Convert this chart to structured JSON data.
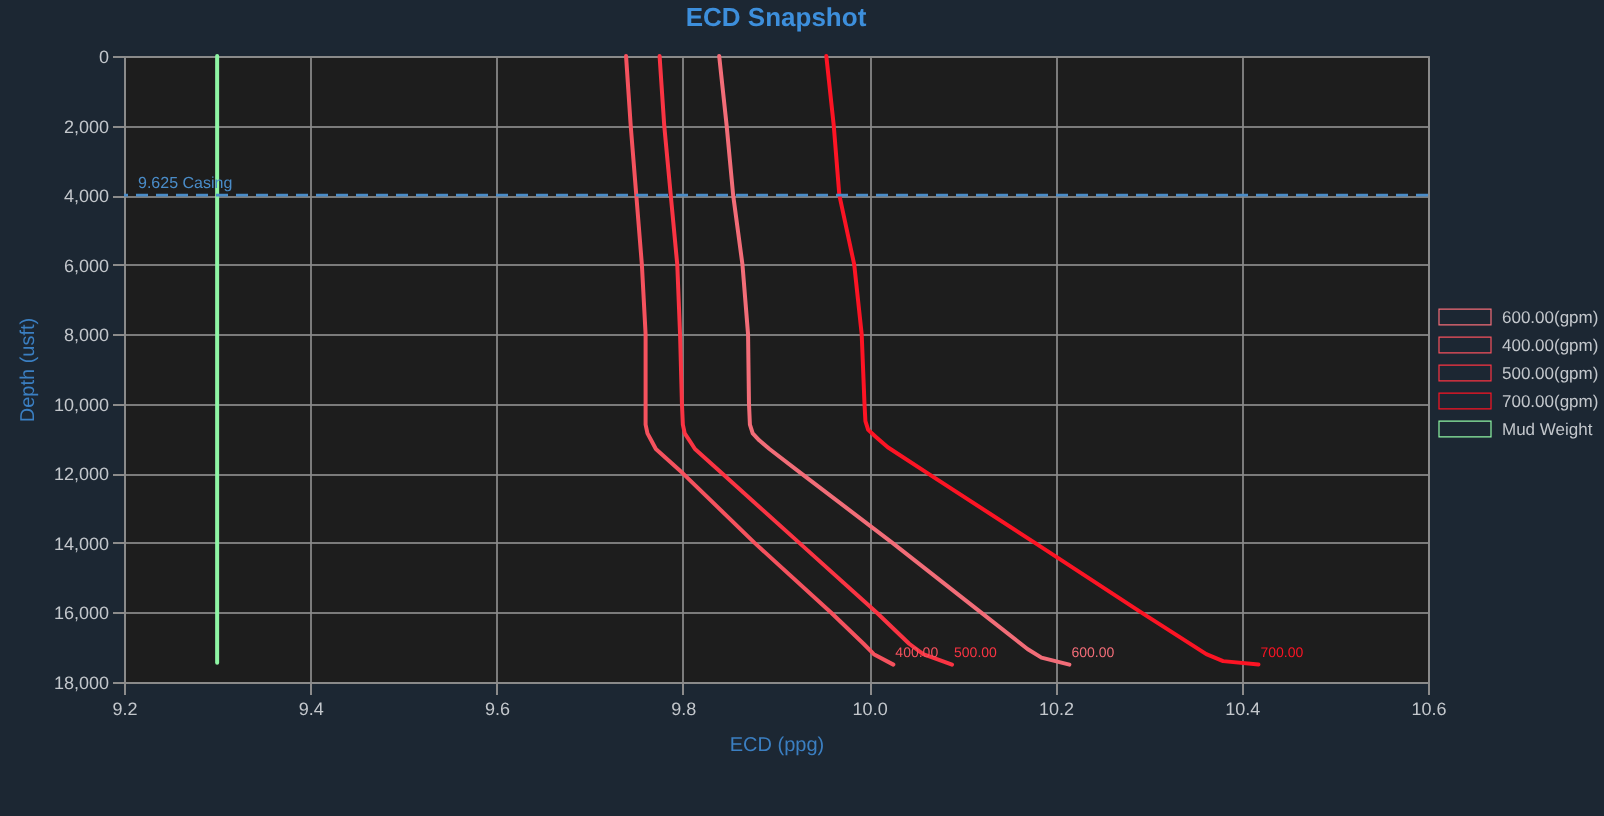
{
  "chart_data": {
    "type": "line",
    "title": "ECD Snapshot",
    "xlabel": "ECD (ppg)",
    "ylabel": "Depth (usft)",
    "xlim": [
      9.2,
      10.6
    ],
    "xticks": [
      9.2,
      9.4,
      9.6,
      9.8,
      {
        "value": 10,
        "label": "10.0"
      },
      10.2,
      10.4,
      10.6
    ],
    "ylim": [
      18000,
      0
    ],
    "yticks": [
      0,
      {
        "value": 2000,
        "label": "2,000"
      },
      {
        "value": 4000,
        "label": "4,000"
      },
      {
        "value": 6000,
        "label": "6,000"
      },
      {
        "value": 8000,
        "label": "8,000"
      },
      {
        "value": 10000,
        "label": "10,000"
      },
      {
        "value": 12000,
        "label": "12,000"
      },
      {
        "value": 14000,
        "label": "14,000"
      },
      {
        "value": 16000,
        "label": "16,000"
      },
      {
        "value": 18000,
        "label": "18,000"
      }
    ],
    "grid": true,
    "legend": "right",
    "series": [
      {
        "name": "600.00(gpm)",
        "color": "#f26d78",
        "x": [
          9.839,
          9.847,
          9.854,
          9.864,
          9.87,
          9.871,
          9.872,
          9.875,
          9.882,
          9.893,
          9.927,
          10.025,
          10.12,
          10.17,
          10.185,
          10.215
        ],
        "values": [
          0,
          2000,
          4000,
          6000,
          8000,
          10000,
          10600,
          10850,
          11050,
          11300,
          12000,
          14000,
          16000,
          17050,
          17300,
          17500
        ]
      },
      {
        "name": "400.00(gpm)",
        "color": "#f5525e",
        "x": [
          9.739,
          9.744,
          9.75,
          9.756,
          9.76,
          9.76,
          9.76,
          9.762,
          9.766,
          9.771,
          9.8,
          9.877,
          9.959,
          9.994,
          10.005,
          10.026
        ],
        "values": [
          0,
          2000,
          4000,
          6000,
          8000,
          10000,
          10600,
          10850,
          11050,
          11300,
          12000,
          14000,
          16000,
          16900,
          17200,
          17500
        ]
      },
      {
        "name": "500.00(gpm)",
        "color": "#fa3443",
        "x": [
          9.775,
          9.78,
          9.787,
          9.794,
          9.797,
          9.799,
          9.8,
          9.802,
          9.807,
          9.813,
          9.842,
          9.925,
          10.008,
          10.043,
          10.058,
          10.089
        ],
        "values": [
          0,
          2000,
          4000,
          6000,
          8000,
          10000,
          10600,
          10850,
          11050,
          11300,
          12000,
          14000,
          16000,
          16900,
          17200,
          17500
        ]
      },
      {
        "name": "700.00(gpm)",
        "color": "#fc1424",
        "x": [
          9.954,
          9.962,
          9.968,
          9.984,
          9.992,
          9.995,
          9.996,
          9.999,
          10.007,
          10.02,
          10.063,
          10.178,
          10.292,
          10.362,
          10.38,
          10.418
        ],
        "values": [
          0,
          2000,
          4000,
          6000,
          8000,
          10000,
          10500,
          10750,
          10950,
          11250,
          12000,
          14000,
          16000,
          17200,
          17400,
          17500
        ]
      },
      {
        "name": "Mud Weight",
        "color": "#8ef5a4",
        "x": [
          9.3,
          9.3
        ],
        "values": [
          0,
          17450
        ]
      }
    ],
    "ref_lines": [
      {
        "axis": "y",
        "value": 4000,
        "label": "9.625 Casing",
        "color": "#4a8cc8",
        "line_style": "dashed"
      }
    ],
    "annotations": [
      {
        "text": "400.00",
        "x": 10.026,
        "y": 17500
      },
      {
        "text": "500.00",
        "x": 10.089,
        "y": 17500
      },
      {
        "text": "600.00",
        "x": 10.215,
        "y": 17500
      },
      {
        "text": "700.00",
        "x": 10.418,
        "y": 17500
      }
    ]
  }
}
